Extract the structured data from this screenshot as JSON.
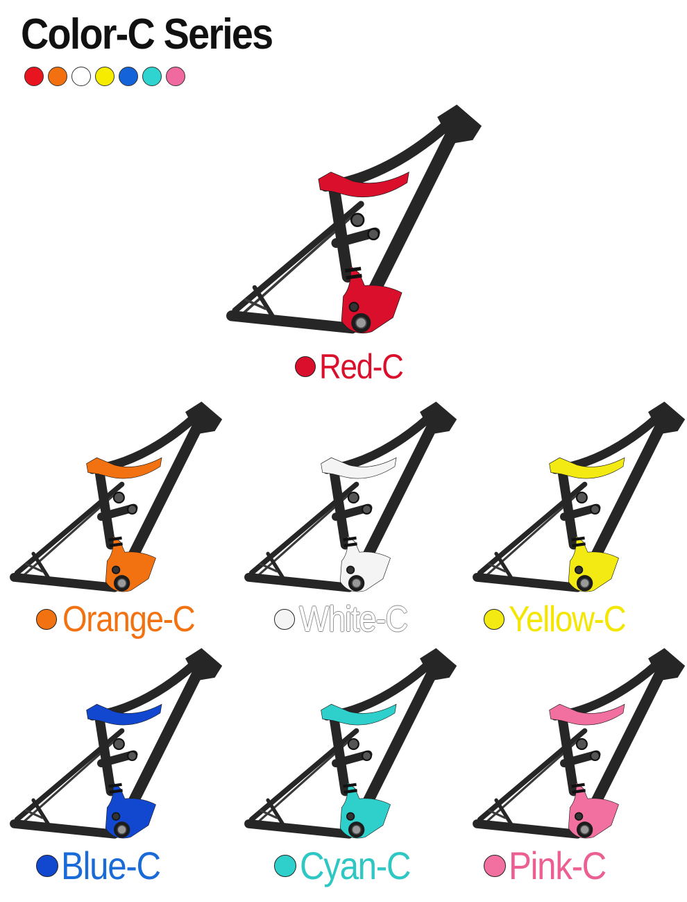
{
  "title": "Color-C Series",
  "swatches": [
    {
      "name": "red",
      "color": "#e8141f"
    },
    {
      "name": "orange",
      "color": "#f2700f"
    },
    {
      "name": "white",
      "color": "#ffffff"
    },
    {
      "name": "yellow",
      "color": "#f5ec00"
    },
    {
      "name": "blue",
      "color": "#1463d9"
    },
    {
      "name": "cyan",
      "color": "#2fd4d0"
    },
    {
      "name": "pink",
      "color": "#f06aa0"
    }
  ],
  "variants": {
    "red": {
      "label": "Red-C",
      "color": "#d90f2c",
      "text_color": "#d90f2c"
    },
    "orange": {
      "label": "Orange-C",
      "color": "#f27211",
      "text_color": "#f27211"
    },
    "white": {
      "label": "White-C",
      "color": "#f4f4f4",
      "text_color": "#ffffff"
    },
    "yellow": {
      "label": "Yellow-C",
      "color": "#f3ea14",
      "text_color": "#f3e600"
    },
    "blue": {
      "label": "Blue-C",
      "color": "#1148cf",
      "text_color": "#1a6ad8"
    },
    "cyan": {
      "label": "Cyan-C",
      "color": "#2fd0cc",
      "text_color": "#2fc7c3"
    },
    "pink": {
      "label": "Pink-C",
      "color": "#f2709f",
      "text_color": "#ec5f93"
    }
  }
}
